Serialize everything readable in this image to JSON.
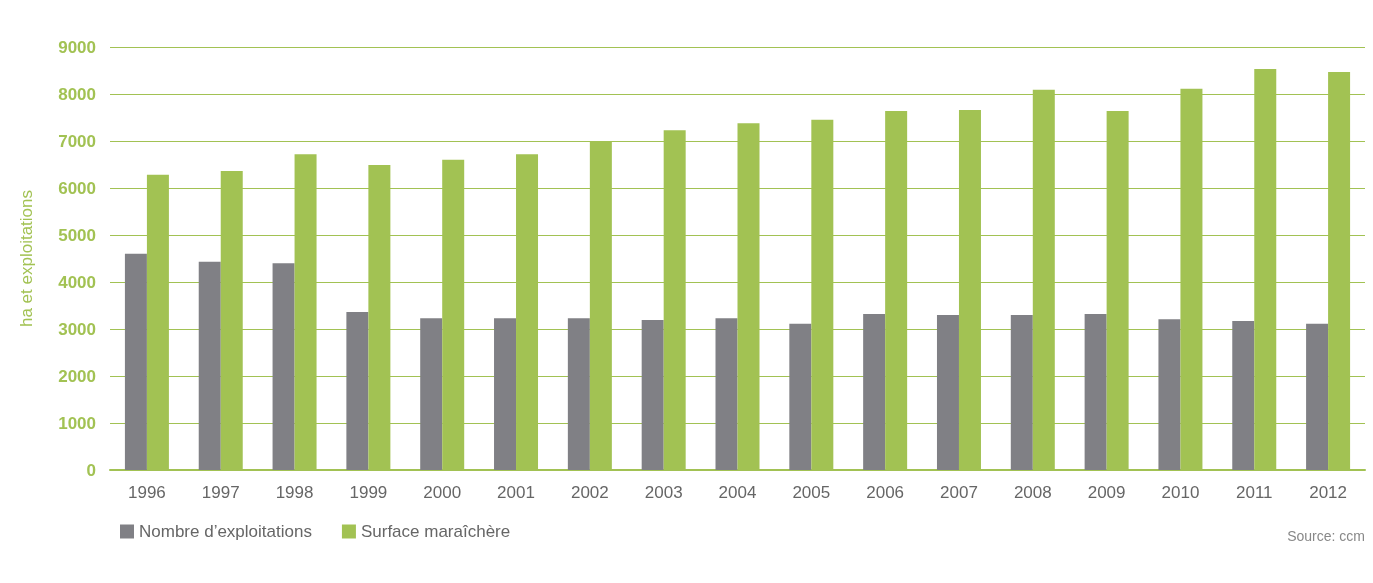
{
  "chart_data": {
    "type": "bar",
    "ylabel": "ha et exploitations",
    "categories": [
      "1996",
      "1997",
      "1998",
      "1999",
      "2000",
      "2001",
      "2002",
      "2003",
      "2004",
      "2005",
      "2006",
      "2007",
      "2008",
      "2009",
      "2010",
      "2011",
      "2012"
    ],
    "series": [
      {
        "name": "Nombre d’exploitations",
        "color": "#808085",
        "values": [
          4600,
          4430,
          4400,
          3360,
          3230,
          3230,
          3230,
          3190,
          3230,
          3110,
          3320,
          3300,
          3300,
          3320,
          3210,
          3170,
          3110
        ]
      },
      {
        "name": "Surface maraîchère",
        "color": "#a2c253",
        "values": [
          6280,
          6360,
          6720,
          6490,
          6600,
          6720,
          6980,
          7230,
          7380,
          7450,
          7640,
          7660,
          8090,
          7640,
          8110,
          8530,
          8470
        ]
      }
    ],
    "ylim": [
      0,
      9000
    ],
    "yticks": [
      0,
      1000,
      2000,
      3000,
      4000,
      5000,
      6000,
      7000,
      8000,
      9000
    ],
    "grid": "y",
    "legend": "bottom left",
    "annotations": [
      "Source: ccm"
    ]
  }
}
